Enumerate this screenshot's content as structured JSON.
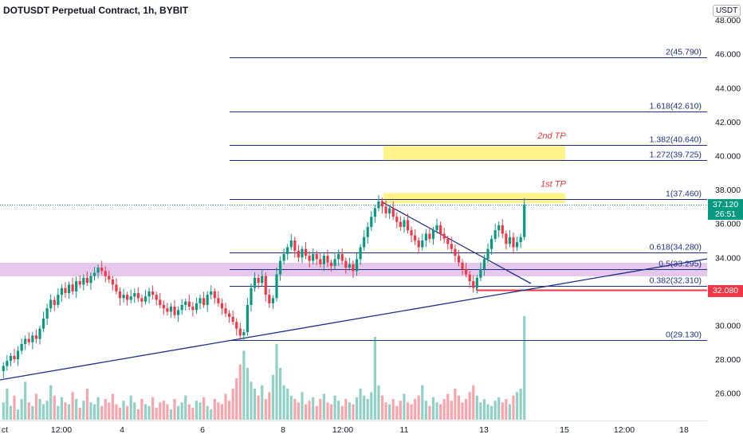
{
  "header": {
    "title": "DOTUSDT Perpetual Contract, 1h, BYBIT"
  },
  "price_axis": {
    "currency": "USDT",
    "labels": [
      "48.000",
      "46.000",
      "44.000",
      "42.000",
      "40.000",
      "38.000",
      "36.000",
      "34.000",
      "32.000",
      "30.000",
      "28.000",
      "26.000"
    ],
    "last_price": "37.120",
    "countdown": "26:51",
    "stop_price": "32.080"
  },
  "time_axis": {
    "labels": [
      "ct",
      "12:00",
      "4",
      "6",
      "8",
      "12:00",
      "11",
      "13",
      "15",
      "12:00",
      "18"
    ]
  },
  "colors": {
    "up": "#089981",
    "down": "#f23645",
    "fib": "#1e2f84",
    "zone": "#e1bee7",
    "tp": "#fff176"
  },
  "chart_data": {
    "type": "candlestick",
    "title": "DOTUSDT Perpetual Contract, 1h, BYBIT",
    "ylim": [
      24.5,
      49.0
    ],
    "last_price": 37.12,
    "fib_levels": [
      {
        "ratio": "2",
        "price": 45.79,
        "label": "2(45.790)"
      },
      {
        "ratio": "1.618",
        "price": 42.61,
        "label": "1.618(42.610)"
      },
      {
        "ratio": "1.382",
        "price": 40.64,
        "label": "1.382(40.640)"
      },
      {
        "ratio": "1.272",
        "price": 39.725,
        "label": "1.272(39.725)"
      },
      {
        "ratio": "1",
        "price": 37.46,
        "label": "1(37.460)"
      },
      {
        "ratio": "0.618",
        "price": 34.28,
        "label": "0.618(34.280)"
      },
      {
        "ratio": "0.5",
        "price": 33.295,
        "label": "0.5(33.295)"
      },
      {
        "ratio": "0.382",
        "price": 32.31,
        "label": "0.382(32.310)"
      },
      {
        "ratio": "0",
        "price": 29.13,
        "label": "0(29.130)"
      }
    ],
    "annotations": [
      {
        "text": "2nd TP",
        "zone": [
          39.725,
          40.64
        ]
      },
      {
        "text": "1st TP",
        "zone": [
          37.2,
          37.8
        ]
      }
    ],
    "support_zone": [
      32.9,
      33.6
    ],
    "stop_level": 32.08,
    "closes": [
      27.6,
      27.9,
      28.2,
      28.0,
      28.5,
      28.9,
      29.2,
      29.0,
      29.4,
      29.2,
      29.8,
      30.4,
      31.0,
      31.5,
      31.2,
      31.8,
      32.2,
      31.9,
      32.4,
      32.0,
      32.6,
      32.4,
      32.8,
      32.5,
      32.9,
      33.1,
      33.4,
      33.2,
      32.9,
      32.7,
      32.4,
      32.0,
      31.6,
      31.8,
      31.5,
      31.7,
      31.9,
      31.6,
      31.4,
      31.7,
      32.0,
      31.8,
      31.5,
      31.2,
      31.0,
      30.8,
      31.1,
      30.6,
      30.9,
      31.2,
      31.4,
      31.1,
      30.9,
      31.3,
      31.6,
      31.2,
      31.8,
      32.0,
      31.6,
      31.3,
      31.0,
      30.7,
      30.5,
      30.2,
      29.8,
      29.4,
      29.6,
      31.2,
      32.2,
      32.8,
      32.5,
      32.9,
      31.8,
      31.3,
      31.6,
      33.0,
      33.8,
      34.2,
      34.6,
      35.0,
      34.4,
      34.0,
      34.5,
      34.1,
      33.8,
      34.2,
      33.9,
      33.6,
      34.1,
      33.7,
      33.5,
      33.9,
      34.2,
      33.8,
      33.4,
      33.6,
      33.2,
      33.9,
      34.6,
      35.2,
      35.8,
      36.4,
      36.9,
      37.3,
      37.0,
      36.6,
      36.9,
      36.4,
      36.1,
      35.8,
      36.2,
      35.6,
      35.3,
      35.0,
      34.6,
      35.0,
      35.4,
      35.1,
      35.6,
      35.9,
      35.4,
      35.1,
      34.8,
      34.5,
      34.1,
      33.7,
      33.3,
      33.0,
      32.6,
      32.2,
      32.8,
      33.3,
      33.9,
      34.5,
      35.1,
      35.6,
      35.9,
      35.4,
      34.8,
      35.2,
      34.6,
      34.9,
      35.2,
      37.12
    ],
    "volumes": [
      10,
      18,
      8,
      14,
      6,
      12,
      22,
      10,
      8,
      15,
      12,
      9,
      11,
      20,
      14,
      8,
      13,
      10,
      9,
      16,
      12,
      7,
      11,
      18,
      10,
      9,
      13,
      8,
      12,
      10,
      15,
      9,
      7,
      11,
      8,
      14,
      10,
      6,
      12,
      9,
      8,
      13,
      7,
      10,
      11,
      9,
      6,
      12,
      8,
      10,
      14,
      9,
      7,
      11,
      10,
      13,
      8,
      6,
      12,
      10,
      9,
      15,
      11,
      18,
      24,
      32,
      40,
      30,
      22,
      18,
      14,
      20,
      12,
      16,
      26,
      44,
      30,
      20,
      18,
      14,
      12,
      10,
      16,
      9,
      11,
      13,
      8,
      12,
      15,
      10,
      9,
      14,
      11,
      8,
      12,
      10,
      9,
      13,
      18,
      14,
      12,
      16,
      48,
      20,
      14,
      10,
      9,
      12,
      8,
      11,
      15,
      10,
      9,
      12,
      14,
      20,
      11,
      8,
      13,
      10,
      9,
      12,
      15,
      11,
      18,
      14,
      10,
      12,
      16,
      20,
      14,
      10,
      12,
      9,
      8,
      11,
      13,
      10,
      12,
      9,
      14,
      16,
      18,
      60
    ]
  }
}
